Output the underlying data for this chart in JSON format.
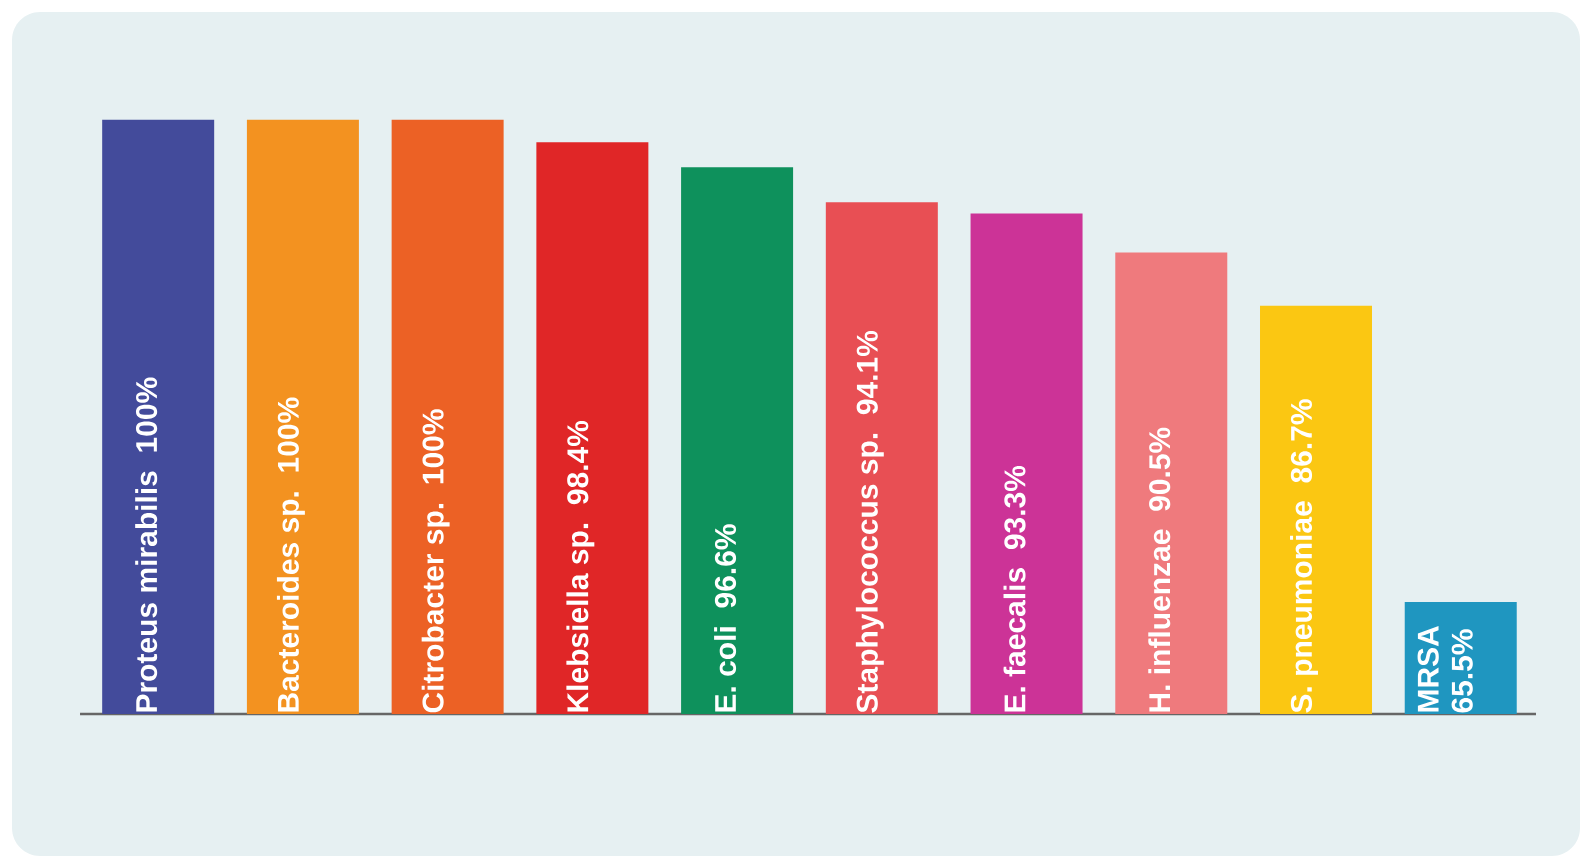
{
  "chart_data": {
    "type": "bar",
    "categories": [
      "Proteus mirabilis",
      "Bacteroides sp.",
      "Citrobacter sp.",
      "Klebsiella sp.",
      "E. coli",
      "Staphylococcus sp.",
      "E. faecalis",
      "H. influenzae",
      "S. pneumoniae",
      "MRSA"
    ],
    "values": [
      100,
      100,
      100,
      98.4,
      96.6,
      94.1,
      93.3,
      90.5,
      86.7,
      65.5
    ],
    "value_labels": [
      "100%",
      "100%",
      "100%",
      "98.4%",
      "96.6%",
      "94.1%",
      "93.3%",
      "90.5%",
      "86.7%",
      "65.5%"
    ],
    "colors": [
      "#434b9b",
      "#f39220",
      "#ec6125",
      "#e02627",
      "#0e915c",
      "#e84f54",
      "#cc3397",
      "#ef7a7d",
      "#fbc712",
      "#1f96c0"
    ],
    "ylim": [
      57.5,
      100.5
    ]
  }
}
